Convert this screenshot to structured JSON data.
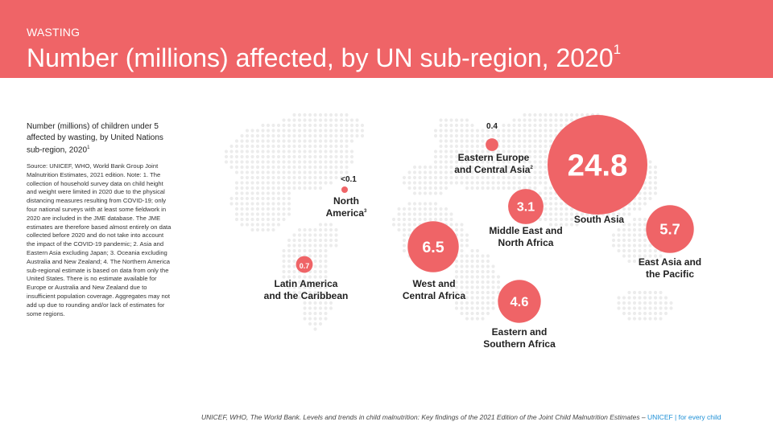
{
  "header": {
    "kicker": "WASTING",
    "title": "Number (millions) affected, by UN sub-region, 2020",
    "title_sup": "1"
  },
  "description": "Number (millions) of children under 5 affected by wasting, by United Nations sub-region, 2020",
  "description_sup": "1",
  "note": "Source: UNICEF, WHO, World Bank Group Joint Malnutrition Estimates, 2021 edition. Note: 1. The collection of household survey data on child height and weight were limited in 2020 due to the physical distancing measures resulting from COVID-19; only four national surveys with at least some fieldwork in 2020 are included in the JME database. The JME estimates are therefore based almost entirely on data collected before 2020 and do not take into account the impact of the COVID-19 pandemic; 2. Asia and Eastern Asia excluding Japan; 3. Oceania excluding Australia and New Zealand; 4. The Northern America sub-regional estimate is based on data from only the United States. There is no estimate available for Europe or Australia and New Zealand due to insufficient population coverage. Aggregates may not add up due to rounding and/or lack of estimates for some regions.",
  "footer": {
    "citation": "UNICEF, WHO, The World Bank. Levels and trends in child malnutrition: Key findings of the 2021 Edition of the Joint Child Malnutrition Estimates –",
    "brand": "UNICEF | for every child"
  },
  "colors": {
    "accent": "#ef6467",
    "map_dot": "#ececec",
    "text_dark": "#222222"
  },
  "chart_data": {
    "type": "bubble",
    "unit": "millions",
    "regions": [
      {
        "name_lines": [
          "Eastern Europe",
          "and Central Asia"
        ],
        "sup": "2",
        "value_label": "0.4",
        "value": 0.4
      },
      {
        "name_lines": [
          "North",
          "America"
        ],
        "sup": "3",
        "value_label": "<0.1",
        "value": 0.05
      },
      {
        "name_lines": [
          "South Asia"
        ],
        "sup": "",
        "value_label": "24.8",
        "value": 24.8
      },
      {
        "name_lines": [
          "Middle East and",
          "North Africa"
        ],
        "sup": "",
        "value_label": "3.1",
        "value": 3.1
      },
      {
        "name_lines": [
          "East Asia and",
          "the Pacific"
        ],
        "sup": "",
        "value_label": "5.7",
        "value": 5.7
      },
      {
        "name_lines": [
          "Latin America",
          "and the Caribbean"
        ],
        "sup": "",
        "value_label": "0.7",
        "value": 0.7
      },
      {
        "name_lines": [
          "West and",
          "Central Africa"
        ],
        "sup": "",
        "value_label": "6.5",
        "value": 6.5
      },
      {
        "name_lines": [
          "Eastern and",
          "Southern Africa"
        ],
        "sup": "",
        "value_label": "4.6",
        "value": 4.6
      }
    ]
  }
}
